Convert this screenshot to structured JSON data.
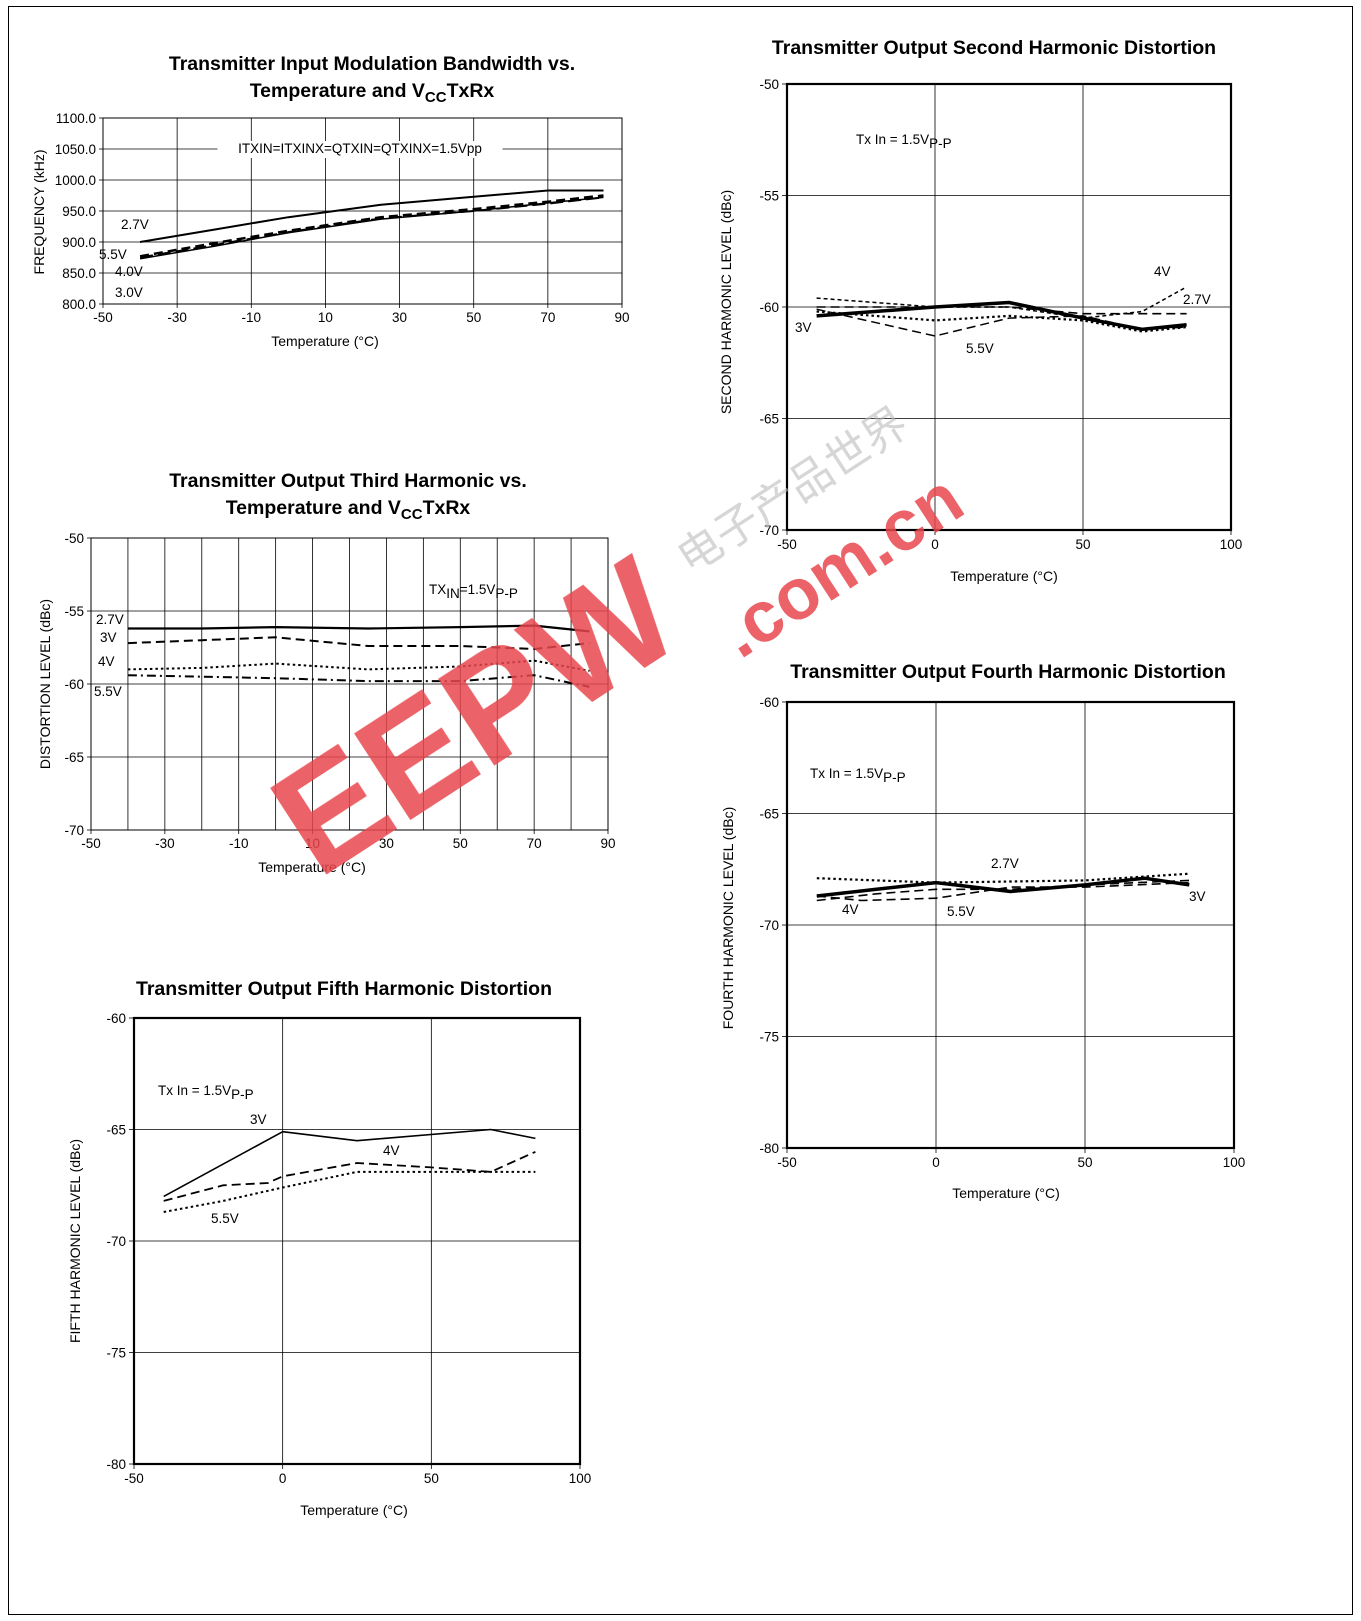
{
  "watermark": {
    "text": "EEPW",
    "domain": ".com.cn",
    "cjk": "电子产品世界",
    "color": "#e8474d"
  },
  "chart_data": [
    {
      "id": "mod-bw",
      "type": "line",
      "title": "Transmitter Input Modulation Bandwidth vs.",
      "title2": "Temperature and VCCTxRx",
      "title2_base": "Temperature and V",
      "title2_sub": "CC",
      "title2_tail": "TxRx",
      "xlabel": "Temperature (°C)",
      "ylabel": "FREQUENCY (kHz)",
      "xlim": [
        -50,
        90
      ],
      "ylim": [
        800,
        1100
      ],
      "xticks": [
        -50,
        -30,
        -10,
        10,
        30,
        50,
        70,
        90
      ],
      "yticks": [
        800,
        850,
        900,
        950,
        1000,
        1050,
        1100
      ],
      "ytick_labels": [
        "800.0",
        "850.0",
        "900.0",
        "950.0",
        "1000.0",
        "1050.0",
        "1100.0"
      ],
      "grid": true,
      "annotation": "ITXIN=ITXINX=QTXIN=QTXINX=1.5Vpp",
      "series": [
        {
          "name": "2.7V",
          "style": "solid",
          "width": 2,
          "x": [
            -40,
            -20,
            0,
            25,
            50,
            70,
            85
          ],
          "y": [
            900,
            920,
            940,
            960,
            973,
            983,
            983
          ]
        },
        {
          "name": "5.5V",
          "style": "dash",
          "width": 2.5,
          "x": [
            -40,
            -20,
            0,
            25,
            50,
            70,
            85
          ],
          "y": [
            877,
            898,
            918,
            940,
            953,
            965,
            975
          ]
        },
        {
          "name": "4.0V",
          "style": "longdash",
          "width": 2,
          "x": [
            -40,
            -20,
            0,
            25,
            50,
            70,
            85
          ],
          "y": [
            875,
            895,
            916,
            938,
            950,
            962,
            972
          ]
        },
        {
          "name": "3.0V",
          "style": "solid",
          "width": 1.5,
          "x": [
            -40,
            -20,
            0,
            25,
            50,
            70,
            85
          ],
          "y": [
            873,
            893,
            915,
            937,
            950,
            963,
            972
          ]
        }
      ],
      "labels": [
        "2.7V",
        "5.5V",
        "4.0V",
        "3.0V"
      ]
    },
    {
      "id": "third",
      "type": "line",
      "title": "Transmitter Output Third Harmonic vs.",
      "title2": "Temperature and VCCTxRx",
      "title2_base": "Temperature and V",
      "title2_sub": "CC",
      "title2_tail": "TxRx",
      "xlabel": "Temperature (°C)",
      "ylabel": "DISTORTION LEVEL (dBc)",
      "xlim": [
        -50,
        90
      ],
      "ylim": [
        -70,
        -50
      ],
      "xticks": [
        -50,
        -30,
        -10,
        10,
        30,
        50,
        70,
        90
      ],
      "yticks": [
        -70,
        -65,
        -60,
        -55,
        -50
      ],
      "grid": true,
      "annotation": "TXIN=1.5VP-P",
      "annotation_base": "TX",
      "annotation_sub1": "IN",
      "annotation_mid": "=1.5V",
      "annotation_sub2": "P-P",
      "series": [
        {
          "name": "2.7V",
          "style": "solid",
          "width": 2.2,
          "x": [
            -40,
            -20,
            0,
            25,
            50,
            70,
            85
          ],
          "y": [
            -56.2,
            -56.2,
            -56.1,
            -56.2,
            -56.1,
            -56.0,
            -56.4
          ]
        },
        {
          "name": "3V",
          "style": "dash",
          "width": 2,
          "x": [
            -40,
            -20,
            0,
            25,
            50,
            70,
            85
          ],
          "y": [
            -57.2,
            -57.0,
            -56.8,
            -57.4,
            -57.4,
            -57.6,
            -57.2
          ]
        },
        {
          "name": "4V",
          "style": "dot",
          "width": 2,
          "x": [
            -40,
            -20,
            0,
            25,
            50,
            70,
            85
          ],
          "y": [
            -59.0,
            -58.9,
            -58.6,
            -59.0,
            -58.8,
            -58.4,
            -59.1
          ]
        },
        {
          "name": "5.5V",
          "style": "dashdot",
          "width": 2,
          "x": [
            -40,
            -20,
            0,
            25,
            50,
            70,
            85
          ],
          "y": [
            -59.4,
            -59.5,
            -59.6,
            -59.8,
            -59.8,
            -59.4,
            -60.2
          ]
        }
      ],
      "labels": [
        "2.7V",
        "3V",
        "4V",
        "5.5V"
      ]
    },
    {
      "id": "fifth",
      "type": "line",
      "title": "Transmitter Output Fifth Harmonic Distortion",
      "xlabel": "Temperature (°C)",
      "ylabel": "FIFTH HARMONIC LEVEL (dBc)",
      "xlim": [
        -50,
        100
      ],
      "ylim": [
        -80,
        -60
      ],
      "xticks": [
        -50,
        0,
        50,
        100
      ],
      "yticks": [
        -80,
        -75,
        -70,
        -65,
        -60
      ],
      "grid": true,
      "annotation": "Tx In = 1.5VP-P",
      "annotation_base": "Tx In = 1.5V",
      "annotation_sub": "P-P",
      "series": [
        {
          "name": "3V",
          "style": "solid",
          "width": 1.6,
          "x": [
            -40,
            0,
            25,
            70,
            85
          ],
          "y": [
            -68.0,
            -65.1,
            -65.5,
            -65.0,
            -65.4
          ]
        },
        {
          "name": "4V",
          "style": "dash",
          "width": 1.8,
          "x": [
            -40,
            -20,
            -5,
            0,
            25,
            50,
            70,
            85
          ],
          "y": [
            -68.2,
            -67.5,
            -67.4,
            -67.1,
            -66.5,
            -66.7,
            -66.9,
            -66.0
          ]
        },
        {
          "name": "5.5V",
          "style": "dot",
          "width": 2,
          "x": [
            -40,
            -20,
            0,
            25,
            50,
            70,
            85
          ],
          "y": [
            -68.7,
            -68.2,
            -67.6,
            -66.9,
            -66.9,
            -66.9,
            -66.9
          ]
        }
      ],
      "labels": [
        "3V",
        "4V",
        "5.5V"
      ]
    },
    {
      "id": "second",
      "type": "line",
      "title": "Transmitter Output Second Harmonic Distortion",
      "xlabel": "Temperature (°C)",
      "ylabel": "SECOND HARMONIC LEVEL (dBc)",
      "xlim": [
        -50,
        100
      ],
      "ylim": [
        -70,
        -50
      ],
      "xticks": [
        -50,
        0,
        50,
        100
      ],
      "yticks": [
        -70,
        -65,
        -60,
        -55,
        -50
      ],
      "grid": true,
      "annotation": "Tx In = 1.5VP-P",
      "annotation_base": "Tx In = 1.5V",
      "annotation_sub": "P-P",
      "series": [
        {
          "name": "3V",
          "style": "solid",
          "width": 3.5,
          "x": [
            -40,
            0,
            25,
            50,
            70,
            85
          ],
          "y": [
            -60.4,
            -60.0,
            -59.8,
            -60.5,
            -61.0,
            -60.8
          ]
        },
        {
          "name": "2.7V",
          "style": "dash",
          "width": 1.6,
          "x": [
            -40,
            0,
            25,
            50,
            70,
            85
          ],
          "y": [
            -60.0,
            -60.0,
            -60.0,
            -60.3,
            -60.3,
            -60.3
          ]
        },
        {
          "name": "4V",
          "style": "smalldash",
          "width": 1.5,
          "x": [
            -40,
            0,
            25,
            50,
            70,
            85
          ],
          "y": [
            -59.6,
            -60.0,
            -60.0,
            -60.5,
            -60.2,
            -59.1
          ]
        },
        {
          "name": "5.5V",
          "style": "dash",
          "width": 1.5,
          "x": [
            -40,
            0,
            25,
            50,
            70,
            85
          ],
          "y": [
            -60.1,
            -61.3,
            -60.5,
            -60.4,
            -61.0,
            -60.9
          ]
        },
        {
          "name": "",
          "style": "dot",
          "width": 2.2,
          "x": [
            -40,
            0,
            25,
            50,
            70,
            85
          ],
          "y": [
            -60.2,
            -60.6,
            -60.4,
            -60.6,
            -61.1,
            -60.9
          ]
        }
      ],
      "labels": [
        "4V",
        "2.7V",
        "3V",
        "5.5V"
      ]
    },
    {
      "id": "fourth",
      "type": "line",
      "title": "Transmitter Output Fourth Harmonic Distortion",
      "xlabel": "Temperature (°C)",
      "ylabel": "FOURTH HARMONIC LEVEL (dBc)",
      "xlim": [
        -50,
        100
      ],
      "ylim": [
        -80,
        -60
      ],
      "xticks": [
        -50,
        0,
        50,
        100
      ],
      "yticks": [
        -80,
        -75,
        -70,
        -65,
        -60
      ],
      "grid": true,
      "annotation": "Tx In = 1.5VP-P",
      "annotation_base": "Tx In = 1.5V",
      "annotation_sub": "P-P",
      "series": [
        {
          "name": "3V",
          "style": "solid",
          "width": 3.5,
          "x": [
            -40,
            -20,
            0,
            25,
            50,
            70,
            85
          ],
          "y": [
            -68.7,
            -68.4,
            -68.1,
            -68.5,
            -68.2,
            -67.9,
            -68.2
          ]
        },
        {
          "name": "2.7V",
          "style": "dot",
          "width": 2.2,
          "x": [
            -40,
            0,
            50,
            85
          ],
          "y": [
            -67.9,
            -68.1,
            -68.0,
            -67.7
          ]
        },
        {
          "name": "4V",
          "style": "dash",
          "width": 1.6,
          "x": [
            -40,
            -20,
            0,
            25,
            50,
            85
          ],
          "y": [
            -68.9,
            -68.6,
            -68.4,
            -68.4,
            -68.2,
            -68.0
          ]
        },
        {
          "name": "5.5V",
          "style": "dash",
          "width": 1.6,
          "x": [
            -40,
            -25,
            0,
            25,
            50,
            85
          ],
          "y": [
            -68.7,
            -68.9,
            -68.8,
            -68.3,
            -68.3,
            -68.1
          ]
        }
      ],
      "labels": [
        "2.7V",
        "4V",
        "5.5V",
        "3V"
      ]
    }
  ]
}
